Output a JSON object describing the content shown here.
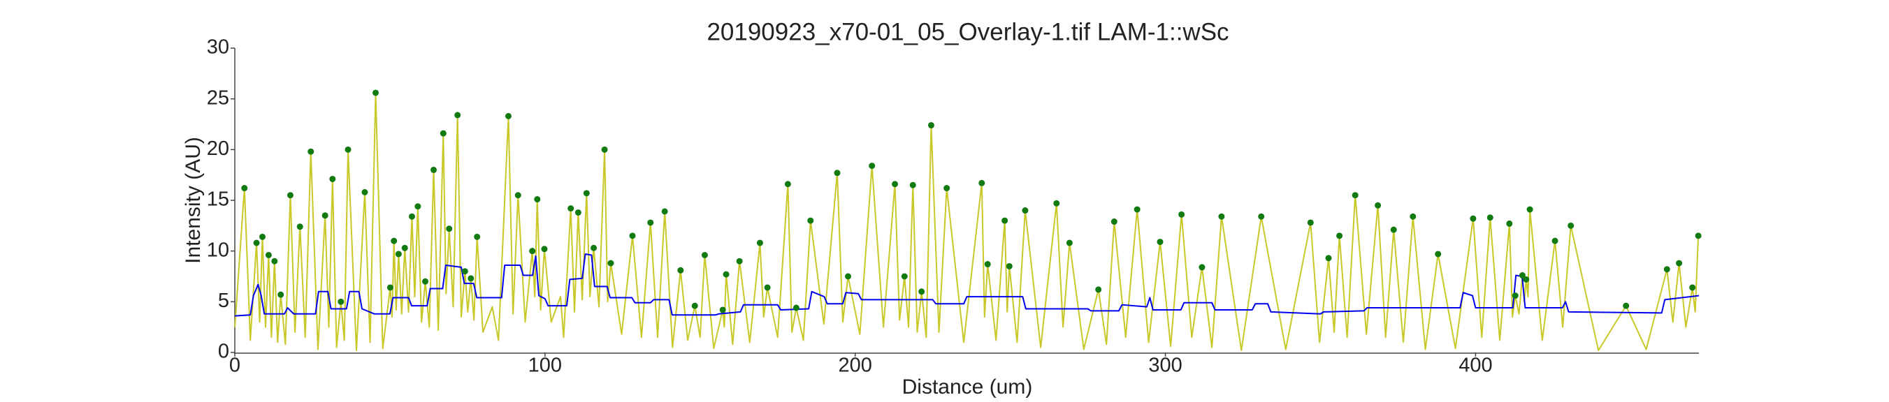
{
  "chart_data": {
    "type": "line",
    "title": "20190923_x70-01_05_Overlay-1.tif LAM-1::wSc",
    "x_label": "Distance (um)",
    "y_label": "Intensity (AU)",
    "xlim": [
      0,
      472
    ],
    "ylim": [
      0,
      30
    ],
    "xticks": [
      0,
      100,
      200,
      300,
      400
    ],
    "yticks": [
      0,
      5,
      10,
      15,
      20,
      25,
      30
    ],
    "series": [
      {
        "kind": "line",
        "color": "#c8c828",
        "x": [
          0,
          3.1,
          5,
          7.0,
          8,
          8.9,
          9.9,
          10.9,
          11.8,
          12.8,
          13.8,
          14.8,
          16.3,
          17.9,
          19.4,
          21.0,
          22.7,
          24.5,
          26.8,
          29.1,
          30.3,
          31.5,
          32.8,
          34.2,
          35.3,
          36.5,
          39.2,
          41.9,
          43.6,
          45.4,
          47.7,
          50.1,
          50.7,
          51.3,
          52,
          52.8,
          53.8,
          54.8,
          56,
          57.1,
          58,
          59.0,
          60.2,
          61.4,
          62.7,
          64.1,
          65.6,
          67.2,
          68.1,
          69.1,
          70.4,
          71.8,
          73,
          74.2,
          75.1,
          76.1,
          77.1,
          78.1,
          80,
          83,
          85,
          88.2,
          89.7,
          91.3,
          93.6,
          95.9,
          96.7,
          97.5,
          98.6,
          99.8,
          102,
          105,
          106,
          108.3,
          109.5,
          110.7,
          112,
          113.4,
          114.5,
          115.7,
          117.4,
          119.2,
          120.2,
          121.2,
          124.7,
          128.2,
          131.1,
          134.0,
          136.3,
          138.6,
          141.1,
          143.7,
          146,
          148.3,
          150,
          151.5,
          154.4,
          157.3,
          157.8,
          158.4,
          160.5,
          162.7,
          166,
          169.3,
          170.5,
          171.7,
          175,
          178.3,
          179.6,
          181.0,
          183.3,
          185.6,
          189.9,
          194.2,
          196,
          197.7,
          201.5,
          205.4,
          209.1,
          212.8,
          214.3,
          215.9,
          217.2,
          218.6,
          220,
          221.4,
          222.9,
          224.5,
          227,
          229.5,
          235,
          240.8,
          241.7,
          242.7,
          245.4,
          248.2,
          249,
          249.7,
          252.2,
          254.8,
          259.8,
          264.9,
          267,
          269.1,
          273.7,
          278.4,
          281,
          283.5,
          287.2,
          290.9,
          294.6,
          298.3,
          301.7,
          305.2,
          308.5,
          311.8,
          315,
          318.1,
          324.5,
          330.9,
          338.8,
          346.8,
          349.7,
          352.6,
          354.4,
          356.1,
          358.6,
          361.2,
          364.8,
          368.5,
          371,
          373.6,
          376.7,
          379.8,
          383.8,
          387.9,
          393.5,
          399.2,
          402,
          404.7,
          407.8,
          410.9,
          411.9,
          412.8,
          414,
          415.1,
          415.7,
          416.3,
          416.9,
          417.5,
          421.5,
          425.6,
          428.1,
          430.7,
          439.6,
          448.5,
          455,
          461.7,
          463.6,
          465.6,
          467.8,
          469.9,
          470.8,
          471.8
        ],
        "values": [
          2.5,
          16.2,
          1.2,
          10.8,
          3,
          11.4,
          2.5,
          9.6,
          1.5,
          9.0,
          1.0,
          5.7,
          0.8,
          15.5,
          2.0,
          12.4,
          1.5,
          19.8,
          0.3,
          13.5,
          2.5,
          17.1,
          0.5,
          5.0,
          1.2,
          20.0,
          0.2,
          15.8,
          1.0,
          25.6,
          0.4,
          6.4,
          3.5,
          11.0,
          4.2,
          9.7,
          3.8,
          10.3,
          4,
          13.4,
          5.5,
          14.4,
          3,
          7.0,
          2.5,
          18.0,
          2.2,
          21.6,
          5.8,
          12.2,
          4.5,
          23.4,
          3.5,
          8.0,
          4.0,
          7.3,
          3.2,
          11.4,
          2.0,
          4.5,
          1.2,
          23.3,
          3.8,
          15.5,
          3.0,
          10.0,
          5.5,
          15.1,
          4.2,
          10.2,
          3.0,
          5.5,
          1.5,
          14.2,
          4.0,
          13.8,
          5.2,
          15.7,
          5.5,
          10.3,
          4.5,
          20.0,
          5.0,
          8.8,
          1.8,
          11.5,
          1.5,
          12.8,
          1.5,
          13.9,
          0.5,
          8.1,
          1.2,
          4.6,
          1.5,
          9.6,
          0.4,
          4.2,
          2.5,
          7.7,
          0.8,
          9.0,
          1.0,
          10.8,
          3.5,
          6.4,
          1.5,
          16.6,
          2.0,
          4.4,
          1.2,
          13.0,
          2.8,
          17.7,
          3.0,
          7.5,
          1.8,
          18.4,
          2.5,
          16.6,
          3.2,
          7.5,
          2.5,
          16.5,
          2.0,
          6.0,
          1.5,
          22.4,
          2.0,
          16.2,
          1.0,
          16.7,
          3.5,
          8.7,
          1.2,
          13.0,
          4.0,
          8.5,
          1.0,
          14.0,
          0.5,
          14.7,
          2.5,
          10.8,
          0.3,
          6.2,
          0.8,
          12.9,
          1.5,
          14.1,
          1.0,
          10.9,
          0.6,
          13.6,
          1.5,
          8.4,
          0.5,
          13.4,
          0.2,
          13.4,
          0.3,
          12.8,
          1.0,
          9.3,
          2.0,
          11.5,
          1.5,
          15.5,
          1.8,
          14.5,
          1.5,
          12.1,
          1.0,
          13.4,
          0.3,
          9.7,
          0.4,
          13.2,
          1.5,
          13.3,
          1.2,
          12.7,
          3.5,
          5.6,
          3.8,
          7.6,
          5.0,
          7.2,
          5.5,
          14.1,
          1.2,
          11.0,
          2.5,
          12.5,
          0.2,
          4.6,
          0.3,
          8.2,
          3.0,
          8.8,
          2.5,
          6.4,
          4.0,
          11.5
        ]
      },
      {
        "kind": "line",
        "color": "#0000ee",
        "x": [
          0,
          5,
          6,
          7.5,
          8.5,
          9.5,
          16,
          17,
          19,
          26,
          27,
          30,
          31,
          36,
          37,
          40,
          41,
          45,
          50,
          51,
          56,
          57,
          62,
          63,
          67,
          68,
          73,
          74,
          77,
          78,
          86,
          87,
          92,
          93,
          96,
          97,
          98,
          100,
          101,
          107,
          108,
          112,
          113,
          115,
          116,
          120,
          121,
          128,
          129,
          134,
          135,
          140,
          141,
          155,
          156,
          163,
          164,
          175,
          176,
          185,
          186,
          190,
          191,
          196,
          197,
          201,
          202,
          225,
          226,
          235,
          236,
          254,
          255,
          268,
          269,
          275,
          276,
          285,
          286,
          294,
          295,
          296,
          305,
          306,
          315,
          316,
          328,
          329,
          333,
          334,
          350,
          351,
          364,
          365,
          395,
          396,
          399,
          400,
          412,
          413,
          415,
          416,
          428,
          429,
          430,
          460,
          461,
          472
        ],
        "values": [
          3.6,
          3.7,
          5.6,
          6.7,
          5.6,
          3.8,
          3.8,
          4.4,
          3.8,
          3.8,
          6.0,
          6.0,
          4.3,
          4.3,
          6.0,
          6.0,
          4.3,
          3.8,
          3.8,
          5.4,
          5.4,
          4.6,
          4.6,
          6.3,
          6.3,
          8.6,
          8.4,
          6.8,
          6.8,
          5.4,
          5.4,
          8.6,
          8.6,
          7.6,
          7.6,
          9.5,
          5.6,
          5.3,
          4.6,
          4.6,
          7.2,
          7.3,
          9.7,
          9.6,
          6.5,
          6.5,
          5.4,
          5.4,
          4.9,
          4.9,
          5.2,
          5.2,
          3.7,
          3.7,
          3.8,
          4.0,
          4.7,
          4.7,
          4.2,
          4.3,
          6.0,
          5.5,
          4.8,
          4.8,
          5.9,
          5.8,
          5.2,
          5.2,
          4.8,
          4.8,
          5.5,
          5.5,
          4.3,
          4.3,
          4.3,
          4.3,
          4.1,
          4.1,
          4.7,
          4.5,
          5.4,
          4.2,
          4.2,
          4.9,
          4.9,
          4.2,
          4.2,
          4.8,
          4.8,
          4.0,
          3.8,
          4.0,
          4.1,
          4.4,
          4.4,
          5.9,
          5.6,
          4.4,
          4.4,
          7.6,
          7.5,
          4.4,
          4.4,
          5.0,
          4.0,
          3.9,
          5.2,
          5.6
        ]
      },
      {
        "kind": "points",
        "color": "#117a11",
        "x": [
          3.1,
          7.0,
          8.9,
          10.9,
          12.8,
          14.8,
          17.9,
          21.0,
          24.5,
          29.1,
          31.5,
          34.2,
          36.5,
          41.9,
          45.4,
          50.1,
          51.3,
          52.8,
          54.8,
          57.1,
          59.0,
          61.4,
          64.1,
          67.2,
          69.1,
          71.8,
          74.2,
          76.1,
          78.1,
          88.2,
          91.3,
          95.9,
          97.5,
          99.8,
          108.3,
          110.7,
          113.4,
          115.7,
          119.2,
          121.2,
          128.2,
          134.0,
          138.6,
          143.7,
          148.3,
          151.5,
          157.3,
          158.4,
          162.7,
          169.3,
          171.7,
          178.3,
          181.0,
          185.6,
          194.2,
          197.7,
          205.4,
          212.8,
          215.9,
          218.6,
          221.4,
          224.5,
          229.5,
          240.8,
          242.7,
          248.2,
          249.7,
          254.8,
          264.9,
          269.1,
          278.4,
          283.5,
          290.9,
          298.3,
          305.2,
          311.8,
          318.1,
          330.9,
          346.8,
          352.6,
          356.1,
          361.2,
          368.5,
          373.6,
          379.8,
          387.9,
          399.2,
          404.7,
          410.9,
          412.8,
          415.1,
          416.3,
          417.5,
          425.6,
          430.7,
          448.5,
          461.7,
          465.6,
          469.9,
          471.8
        ],
        "values": [
          16.2,
          10.8,
          11.4,
          9.6,
          9.0,
          5.7,
          15.5,
          12.4,
          19.8,
          13.5,
          17.1,
          5.0,
          20.0,
          15.8,
          25.6,
          6.4,
          11.0,
          9.7,
          10.3,
          13.4,
          14.4,
          7.0,
          18.0,
          21.6,
          12.2,
          23.4,
          8.0,
          7.3,
          11.4,
          23.3,
          15.5,
          10.0,
          15.1,
          10.2,
          14.2,
          13.8,
          15.7,
          10.3,
          20.0,
          8.8,
          11.5,
          12.8,
          13.9,
          8.1,
          4.6,
          9.6,
          4.2,
          7.7,
          9.0,
          10.8,
          6.4,
          16.6,
          4.4,
          13.0,
          17.7,
          7.5,
          18.4,
          16.6,
          7.5,
          16.5,
          6.0,
          22.4,
          16.2,
          16.7,
          8.7,
          13.0,
          8.5,
          14.0,
          14.7,
          10.8,
          6.2,
          12.9,
          14.1,
          10.9,
          13.6,
          8.4,
          13.4,
          13.4,
          12.8,
          9.3,
          11.5,
          15.5,
          14.5,
          12.1,
          13.4,
          9.7,
          13.2,
          13.3,
          12.7,
          5.6,
          7.6,
          7.2,
          14.1,
          11.0,
          12.5,
          4.6,
          8.2,
          8.8,
          6.4,
          11.5
        ]
      }
    ]
  }
}
